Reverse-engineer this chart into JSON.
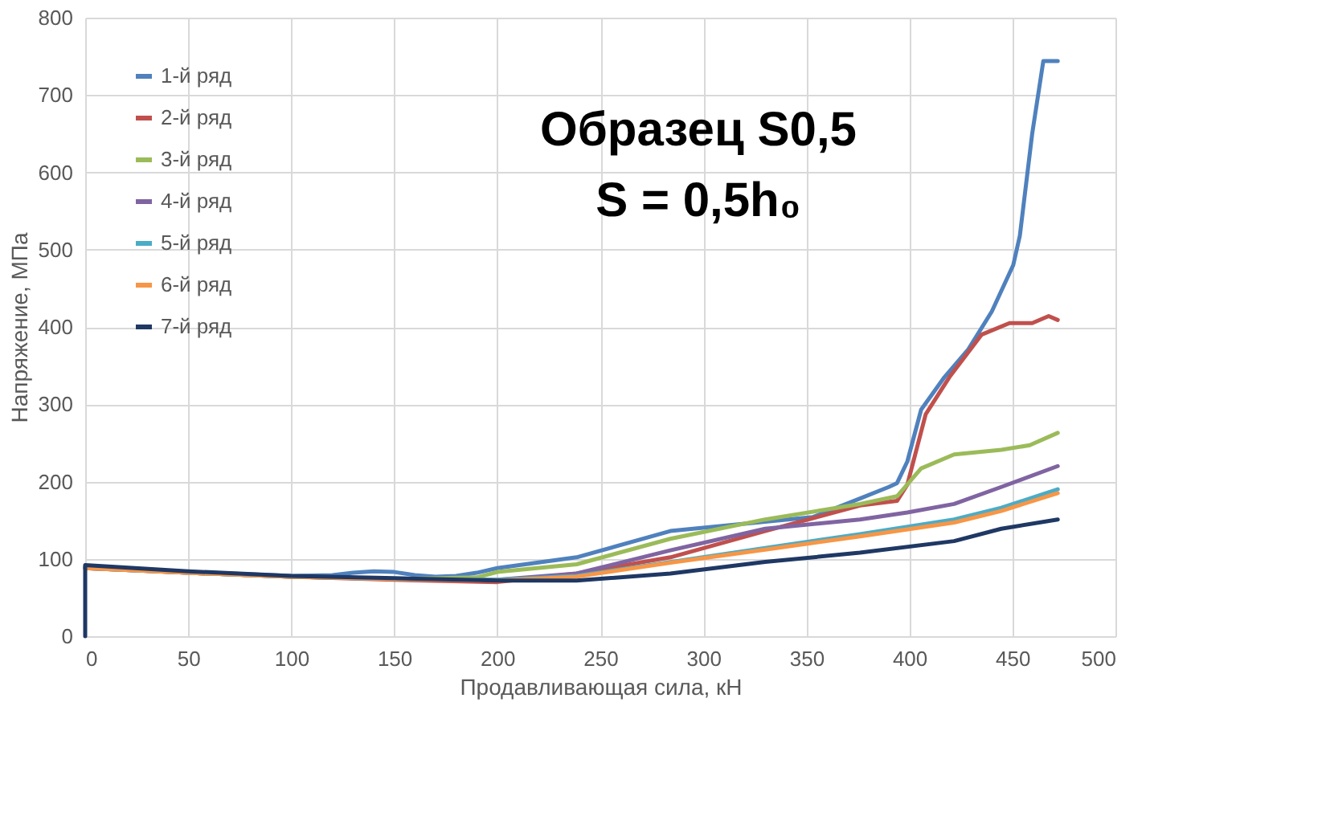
{
  "chart_data": {
    "type": "line",
    "title": "Образец S0,5",
    "subtitle": "S = 0,5h₀",
    "xlabel": "Продавливающая сила, кН",
    "ylabel": "Напряжение, МПа",
    "xlim": [
      0,
      500
    ],
    "xticks": [
      0,
      50,
      100,
      150,
      200,
      250,
      300,
      350,
      400,
      450,
      500
    ],
    "ylim": [
      0,
      800
    ],
    "yticks": [
      0,
      100,
      200,
      300,
      400,
      500,
      600,
      700,
      800
    ],
    "grid": true,
    "legend": "top left",
    "marker": "none",
    "line_style": "solid",
    "series": [
      {
        "name": "1-й ряд",
        "color": "#4f81bd",
        "x": [
          0,
          50,
          100,
          120,
          130,
          140,
          150,
          160,
          170,
          180,
          190,
          200,
          238.5,
          284,
          330,
          353,
          376,
          390,
          394,
          399,
          405.7,
          417,
          428.6,
          440,
          450.4,
          453.6,
          459.6,
          465,
          472
        ],
        "values": [
          90,
          83,
          78,
          79,
          82,
          84,
          83,
          79,
          77,
          78,
          82,
          88,
          102,
          136,
          148,
          154,
          178,
          193,
          198,
          226,
          293,
          335,
          371,
          420,
          480,
          518,
          650,
          744,
          744
        ]
      },
      {
        "name": "2-й ряд",
        "color": "#c0504d",
        "x": [
          0,
          50,
          100,
          150,
          200,
          238.5,
          284,
          330,
          376,
          394,
          399,
          407.9,
          419.4,
          435,
          448.6,
          459.6,
          467.6,
          472
        ],
        "values": [
          88,
          82,
          77,
          73,
          70,
          81,
          102,
          136,
          169,
          175,
          196,
          287,
          335,
          390,
          405,
          405,
          414,
          409
        ]
      },
      {
        "name": "3-й ряд",
        "color": "#9bbb59",
        "x": [
          0,
          50,
          100,
          150,
          190,
          200,
          238.5,
          284,
          330,
          376,
          394,
          405.7,
          421.7,
          444.6,
          458.4,
          472
        ],
        "values": [
          89,
          82,
          77,
          74,
          76,
          83,
          93,
          126,
          151,
          171,
          181,
          217,
          235,
          241,
          247,
          263
        ]
      },
      {
        "name": "4-й ряд",
        "color": "#8064a2",
        "x": [
          0,
          50,
          100,
          150,
          200,
          238.5,
          284,
          330,
          376,
          399,
          421.7,
          444.6,
          472
        ],
        "values": [
          88,
          82,
          77,
          74,
          73,
          81,
          111,
          139,
          151,
          160,
          171,
          193,
          220
        ]
      },
      {
        "name": "5-й ряд",
        "color": "#4bacc6",
        "x": [
          0,
          50,
          100,
          150,
          200,
          238.5,
          284,
          330,
          376,
          421.7,
          444.6,
          472
        ],
        "values": [
          88,
          82,
          77,
          74,
          73,
          78,
          96,
          114,
          132,
          151,
          166,
          190
        ]
      },
      {
        "name": "6-й ряд",
        "color": "#f79646",
        "x": [
          0,
          50,
          100,
          150,
          200,
          238.5,
          284,
          330,
          376,
          421.7,
          444.6,
          472
        ],
        "values": [
          88,
          82,
          77,
          74,
          72,
          77,
          95,
          112,
          129,
          147,
          162,
          185
        ]
      },
      {
        "name": "7-й ряд",
        "color": "#1f3864",
        "x": [
          0,
          0,
          50,
          100,
          150,
          200,
          238.5,
          284,
          330,
          376,
          421.7,
          444.6,
          472
        ],
        "values": [
          0,
          92,
          84,
          78,
          75,
          72,
          72,
          81,
          96,
          108,
          123,
          139,
          151
        ]
      }
    ]
  }
}
